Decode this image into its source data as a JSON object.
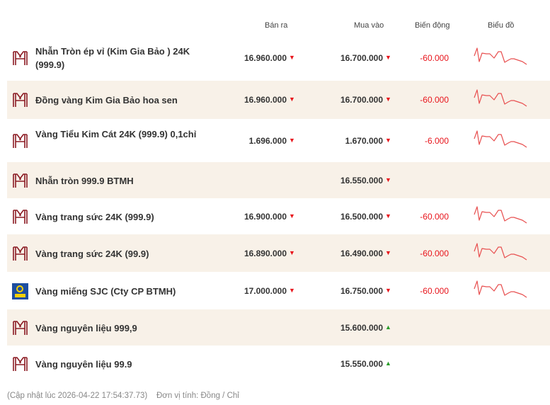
{
  "headers": {
    "sell": "Bán ra",
    "buy": "Mua vào",
    "change": "Biến động",
    "chart": "Biểu đồ"
  },
  "colors": {
    "down": "#e8141b",
    "up": "#2a9d2a",
    "brand": "#8b1a22",
    "alt_row": "#f8f1e8"
  },
  "rows": [
    {
      "name": "Nhẫn Tròn ép vỉ (Kim Gia Bảo ) 24K (999.9)",
      "sell": "16.960.000",
      "sell_dir": "down",
      "buy": "16.700.000",
      "buy_dir": "down",
      "change": "-60.000",
      "chart": true,
      "logo": "btmh-logo"
    },
    {
      "name": "Đồng vàng Kim Gia Bảo hoa sen",
      "sell": "16.960.000",
      "sell_dir": "down",
      "buy": "16.700.000",
      "buy_dir": "down",
      "change": "-60.000",
      "chart": true,
      "logo": "btmh-logo"
    },
    {
      "name": "Vàng Tiểu Kim Cát 24K (999.9) 0,1chỉ",
      "sell": "1.696.000",
      "sell_dir": "down",
      "buy": "1.670.000",
      "buy_dir": "down",
      "change": "-6.000",
      "chart": true,
      "logo": "btmh-logo"
    },
    {
      "name": "Nhẫn tròn 999.9 BTMH",
      "sell": "",
      "sell_dir": "",
      "buy": "16.550.000",
      "buy_dir": "down",
      "change": "",
      "chart": false,
      "logo": "btmh-logo"
    },
    {
      "name": "Vàng trang sức 24K (999.9)",
      "sell": "16.900.000",
      "sell_dir": "down",
      "buy": "16.500.000",
      "buy_dir": "down",
      "change": "-60.000",
      "chart": true,
      "logo": "btmh-logo"
    },
    {
      "name": "Vàng trang sức 24K (99.9)",
      "sell": "16.890.000",
      "sell_dir": "down",
      "buy": "16.490.000",
      "buy_dir": "down",
      "change": "-60.000",
      "chart": true,
      "logo": "btmh-logo"
    },
    {
      "name": "Vàng miếng SJC (Cty CP BTMH)",
      "sell": "17.000.000",
      "sell_dir": "down",
      "buy": "16.750.000",
      "buy_dir": "down",
      "change": "-60.000",
      "chart": true,
      "logo": "sjc-logo"
    },
    {
      "name": "Vàng nguyên liệu 999,9",
      "sell": "",
      "sell_dir": "",
      "buy": "15.600.000",
      "buy_dir": "up",
      "change": "",
      "chart": false,
      "logo": "btmh-logo"
    },
    {
      "name": "Vàng nguyên liệu 99.9",
      "sell": "",
      "sell_dir": "",
      "buy": "15.550.000",
      "buy_dir": "up",
      "change": "",
      "chart": false,
      "logo": "btmh-logo"
    }
  ],
  "footer": {
    "updated": "(Cập nhật lúc 2026-04-22 17:54:37.73)",
    "unit": "Đơn vị tính: Đồng / Chỉ"
  }
}
